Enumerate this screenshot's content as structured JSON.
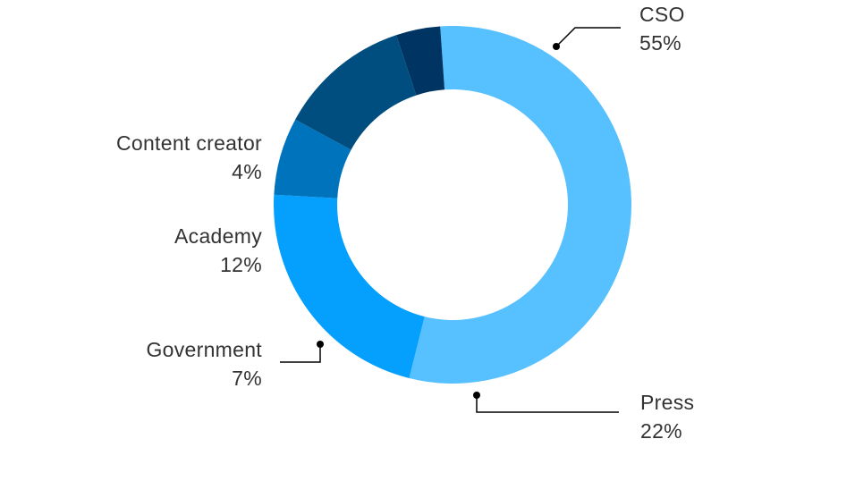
{
  "chart_data": {
    "type": "pie",
    "donut": true,
    "title": "",
    "legend": "none",
    "slices": [
      {
        "label": "CSO",
        "value": 55,
        "value_label": "55%",
        "color": "#57c0ff"
      },
      {
        "label": "Press",
        "value": 22,
        "value_label": "22%",
        "color": "#059ffd"
      },
      {
        "label": "Government",
        "value": 7,
        "value_label": "7%",
        "color": "#0073bd"
      },
      {
        "label": "Academy",
        "value": 12,
        "value_label": "12%",
        "color": "#004e80"
      },
      {
        "label": "Content creator",
        "value": 4,
        "value_label": "4%",
        "color": "#003462"
      }
    ]
  }
}
